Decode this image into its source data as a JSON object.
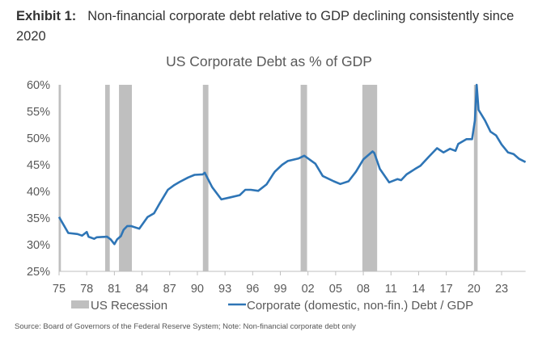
{
  "header": {
    "exhibit_label": "Exhibit 1:",
    "exhibit_title": "Non-financial corporate debt relative to GDP declining consistently since 2020"
  },
  "footer": {
    "source": "Source: Board of Governors of the Federal Reserve System; Note: Non-financial corporate debt only"
  },
  "chart_data": {
    "type": "line",
    "title": "US Corporate Debt as % of GDP",
    "xlabel": "",
    "ylabel": "",
    "ylim": [
      25,
      60
    ],
    "xlim": [
      1975,
      2025.6
    ],
    "yticks": [
      25,
      30,
      35,
      40,
      45,
      50,
      55,
      60
    ],
    "ytick_labels": [
      "25%",
      "30%",
      "35%",
      "40%",
      "45%",
      "50%",
      "55%",
      "60%"
    ],
    "xticks": [
      1975,
      1978,
      1981,
      1984,
      1987,
      1990,
      1993,
      1996,
      1999,
      2002,
      2005,
      2008,
      2011,
      2014,
      2017,
      2020,
      2023
    ],
    "xtick_labels": [
      "75",
      "78",
      "81",
      "84",
      "87",
      "90",
      "93",
      "96",
      "99",
      "02",
      "05",
      "08",
      "11",
      "14",
      "17",
      "20",
      "23"
    ],
    "grid": false,
    "legend_position": "bottom",
    "legend": [
      "US Recession",
      "Corporate (domestic, non-fin.) Debt / GDP"
    ],
    "colors": {
      "line": "#2e75b6",
      "recession": "#bfbfbf",
      "axis": "#bfbfbf",
      "tick_label": "#595959"
    },
    "recessions": [
      [
        1975.0,
        1975.2
      ],
      [
        1980.0,
        1980.5
      ],
      [
        1981.5,
        1982.9
      ],
      [
        1990.6,
        1991.2
      ],
      [
        2001.2,
        2001.9
      ],
      [
        2007.9,
        2009.5
      ],
      [
        2020.0,
        2020.4
      ]
    ],
    "series": [
      {
        "name": "Corporate (domestic, non-fin.) Debt / GDP",
        "x": [
          1975.0,
          1976.0,
          1977.0,
          1977.5,
          1978.0,
          1978.2,
          1978.8,
          1979.1,
          1980.2,
          1980.6,
          1981.0,
          1981.3,
          1981.7,
          1982.0,
          1982.4,
          1982.8,
          1983.7,
          1984.6,
          1985.3,
          1985.9,
          1986.8,
          1987.5,
          1988.1,
          1989.0,
          1989.7,
          1990.6,
          1990.8,
          1991.6,
          1992.6,
          1993.6,
          1994.6,
          1995.2,
          1995.8,
          1996.6,
          1997.5,
          1998.2,
          1998.4,
          1999.2,
          1999.8,
          2001.0,
          2001.6,
          2002.8,
          2003.6,
          2004.8,
          2005.5,
          2006.4,
          2007.2,
          2008.0,
          2009.0,
          2009.2,
          2009.8,
          2010.8,
          2011.7,
          2012.1,
          2012.7,
          2013.6,
          2014.2,
          2015.1,
          2016.0,
          2016.7,
          2017.4,
          2018.0,
          2018.3,
          2019.2,
          2019.8,
          2020.1,
          2020.3,
          2020.5,
          2021.2,
          2021.8,
          2022.4,
          2023.0,
          2023.7,
          2024.3,
          2024.9,
          2025.6
        ],
        "y": [
          35.2,
          32.2,
          32.0,
          31.7,
          32.4,
          31.5,
          31.1,
          31.4,
          31.5,
          31.0,
          30.1,
          31.0,
          31.6,
          32.8,
          33.5,
          33.5,
          33.0,
          35.2,
          35.9,
          37.7,
          40.3,
          41.2,
          41.8,
          42.6,
          43.1,
          43.2,
          43.5,
          40.8,
          38.5,
          38.9,
          39.3,
          40.3,
          40.3,
          40.1,
          41.3,
          43.2,
          43.7,
          45.0,
          45.7,
          46.2,
          46.7,
          45.2,
          42.9,
          41.9,
          41.4,
          41.9,
          43.7,
          46.0,
          47.5,
          47.2,
          44.2,
          41.7,
          42.3,
          42.1,
          43.2,
          44.2,
          44.8,
          46.5,
          48.1,
          47.3,
          48.0,
          47.6,
          48.9,
          49.8,
          49.8,
          53.3,
          60.4,
          55.3,
          53.3,
          51.2,
          50.5,
          48.8,
          47.3,
          47.0,
          46.1,
          45.5
        ]
      }
    ]
  }
}
